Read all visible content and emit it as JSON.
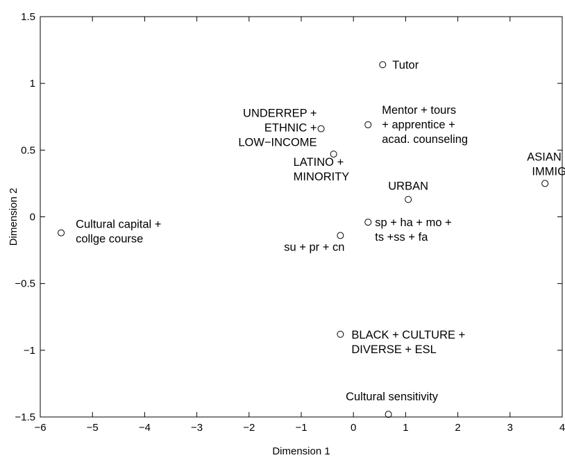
{
  "chart_data": {
    "type": "scatter",
    "xlabel": "Dimension 1",
    "ylabel": "Dimension 2",
    "xlim": [
      -6,
      4
    ],
    "ylim": [
      -1.5,
      1.5
    ],
    "xticks": [
      -6,
      -5,
      -4,
      -3,
      -2,
      -1,
      0,
      1,
      2,
      3,
      4
    ],
    "yticks": [
      -1.5,
      -1,
      -0.5,
      0,
      0.5,
      1,
      1.5
    ],
    "xtick_labels": [
      "−6",
      "−5",
      "−4",
      "−3",
      "−2",
      "−1",
      "0",
      "1",
      "2",
      "3",
      "4"
    ],
    "ytick_labels": [
      "−1.5",
      "−1",
      "−0.5",
      "0",
      "0.5",
      "1",
      "1.5"
    ],
    "grid": false,
    "marker": "open-circle",
    "points": [
      {
        "x": 0.56,
        "y": 1.14,
        "lines": [
          "Tutor"
        ]
      },
      {
        "x": 0.28,
        "y": 0.69,
        "lines": [
          "Mentor + tours",
          "+ apprentice +",
          "acad. counseling"
        ]
      },
      {
        "x": -0.62,
        "y": 0.66,
        "lines": [
          "UNDERREP +",
          "ETHNIC +",
          "LOW−INCOME"
        ]
      },
      {
        "x": -0.38,
        "y": 0.47,
        "lines": [
          "LATINO +",
          "MINORITY"
        ]
      },
      {
        "x": 1.05,
        "y": 0.13,
        "lines": [
          "URBAN"
        ]
      },
      {
        "x": 3.67,
        "y": 0.25,
        "lines": [
          "ASIAN +",
          "IMMIG"
        ]
      },
      {
        "x": -5.6,
        "y": -0.12,
        "lines": [
          "Cultural capital +",
          "collge course"
        ]
      },
      {
        "x": 0.28,
        "y": -0.04,
        "lines": [
          "sp + ha + mo +",
          "ts +ss + fa"
        ]
      },
      {
        "x": -0.25,
        "y": -0.14,
        "lines": [
          "su + pr + cn"
        ]
      },
      {
        "x": -0.25,
        "y": -0.88,
        "lines": [
          "BLACK + CULTURE +",
          "DIVERSE + ESL"
        ]
      },
      {
        "x": 0.67,
        "y": -1.48,
        "lines": [
          "Cultural sensitivity"
        ]
      }
    ]
  }
}
